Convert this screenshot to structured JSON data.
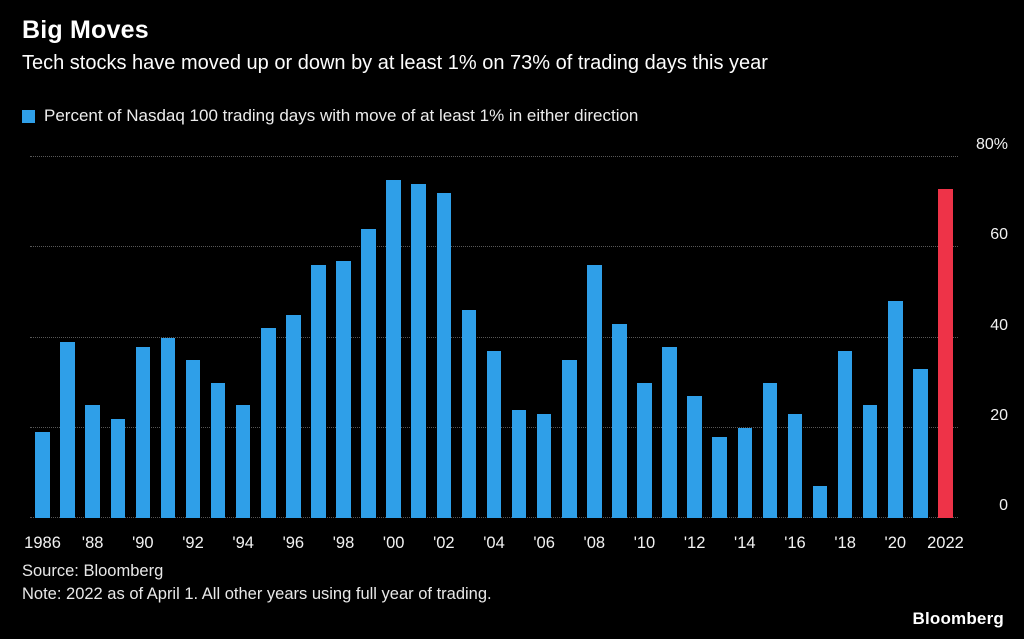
{
  "header": {
    "title": "Big Moves",
    "subtitle": "Tech stocks have moved up or down by at least 1% on 73% of trading days this year"
  },
  "legend": {
    "label": "Percent of Nasdaq 100 trading days with move of at least 1% in either direction"
  },
  "chart_data": {
    "type": "bar",
    "title": "Big Moves",
    "subtitle": "Tech stocks have moved up or down by at least 1% on 73% of trading days this year",
    "legend_entries": [
      "Percent of Nasdaq 100 trading days with move of at least 1% in either direction"
    ],
    "legend_position": "top-left",
    "grid": "horizontal-dotted",
    "xlabel": "",
    "ylabel": "",
    "ylim": [
      0,
      80
    ],
    "yticks": [
      0,
      20,
      40,
      60,
      80
    ],
    "ytick_labels": [
      "0",
      "20",
      "40",
      "60",
      "80%"
    ],
    "categories": [
      1986,
      1987,
      1988,
      1989,
      1990,
      1991,
      1992,
      1993,
      1994,
      1995,
      1996,
      1997,
      1998,
      1999,
      2000,
      2001,
      2002,
      2003,
      2004,
      2005,
      2006,
      2007,
      2008,
      2009,
      2010,
      2011,
      2012,
      2013,
      2014,
      2015,
      2016,
      2017,
      2018,
      2019,
      2020,
      2021,
      2022
    ],
    "x_ticks": [
      {
        "index": 0,
        "label": "1986"
      },
      {
        "index": 2,
        "label": "'88"
      },
      {
        "index": 4,
        "label": "'90"
      },
      {
        "index": 6,
        "label": "'92"
      },
      {
        "index": 8,
        "label": "'94"
      },
      {
        "index": 10,
        "label": "'96"
      },
      {
        "index": 12,
        "label": "'98"
      },
      {
        "index": 14,
        "label": "'00"
      },
      {
        "index": 16,
        "label": "'02"
      },
      {
        "index": 18,
        "label": "'04"
      },
      {
        "index": 20,
        "label": "'06"
      },
      {
        "index": 22,
        "label": "'08"
      },
      {
        "index": 24,
        "label": "'10"
      },
      {
        "index": 26,
        "label": "'12"
      },
      {
        "index": 28,
        "label": "'14"
      },
      {
        "index": 30,
        "label": "'16"
      },
      {
        "index": 32,
        "label": "'18"
      },
      {
        "index": 34,
        "label": "'20"
      },
      {
        "index": 36,
        "label": "2022"
      }
    ],
    "series": [
      {
        "name": "Percent of Nasdaq 100 trading days with move of at least 1% in either direction",
        "values": [
          19,
          39,
          25,
          22,
          38,
          40,
          35,
          30,
          25,
          42,
          45,
          56,
          57,
          64,
          75,
          74,
          72,
          46,
          37,
          24,
          23,
          35,
          56,
          43,
          30,
          38,
          27,
          18,
          20,
          30,
          23,
          7,
          37,
          25,
          48,
          33,
          73
        ]
      }
    ],
    "colors": {
      "default": "#2F9FE8",
      "highlight": "#EE3348",
      "highlight_index": 36,
      "background": "#000000",
      "gridline": "#585858",
      "text": "#FFFFFF"
    }
  },
  "footer": {
    "source": "Source: Bloomberg",
    "note": "Note: 2022 as of April 1. All other years using full year of trading.",
    "brand": "Bloomberg"
  }
}
